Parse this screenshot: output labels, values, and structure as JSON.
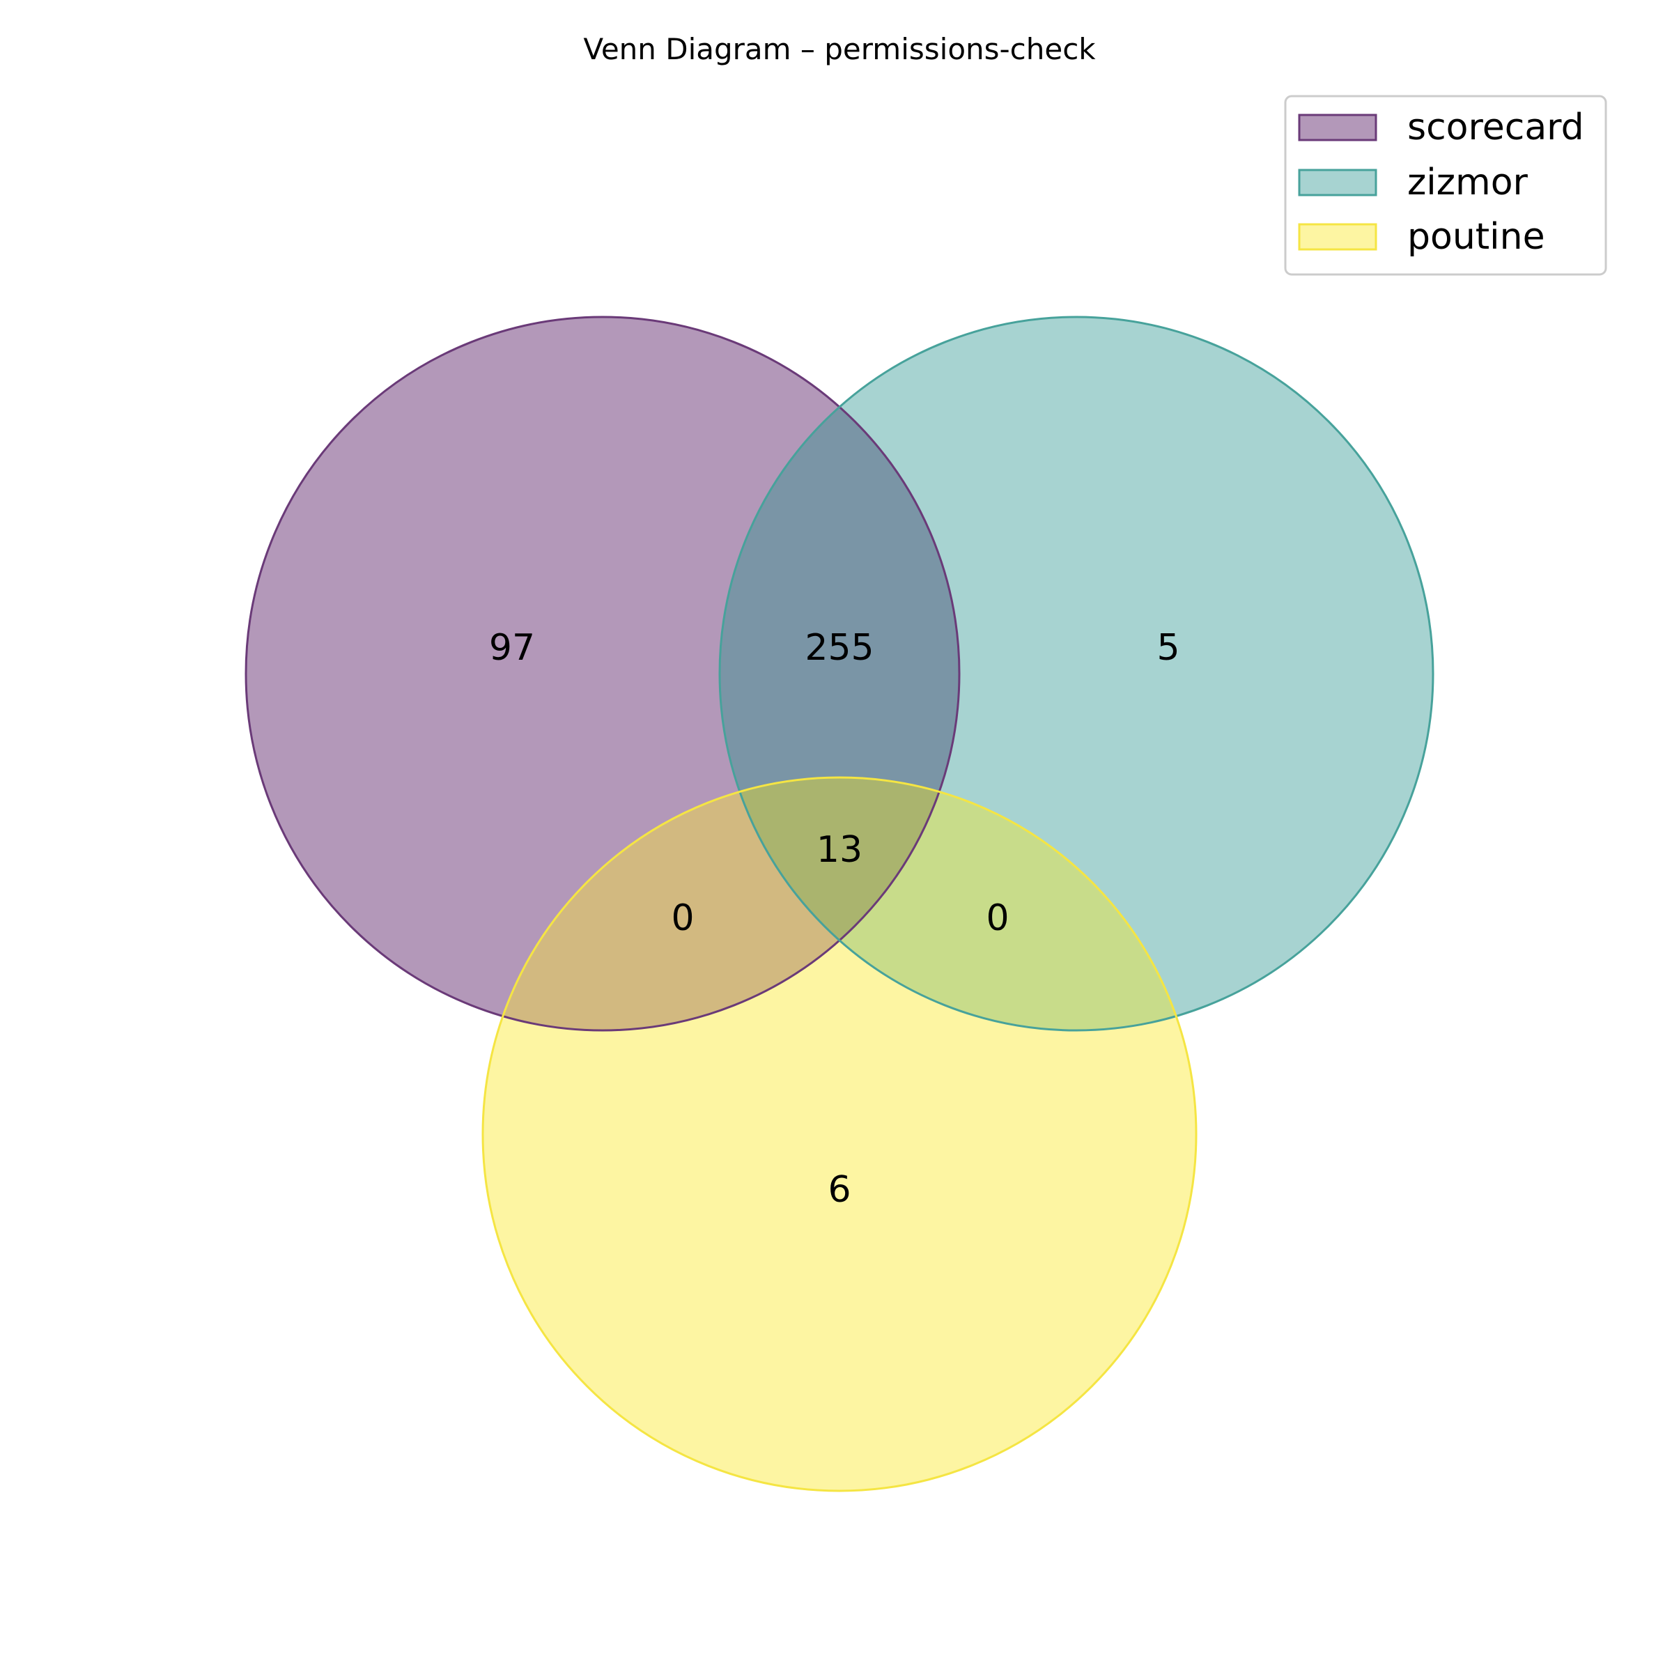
{
  "title": "Venn Diagram – permissions-check",
  "sets": [
    {
      "key": "scorecard",
      "name": "scorecard",
      "fill": "#b398b9",
      "stroke": "#6a3a78"
    },
    {
      "key": "zizmor",
      "name": "zizmor",
      "fill": "#a7d3d1",
      "stroke": "#47a29b"
    },
    {
      "key": "poutine",
      "name": "poutine",
      "fill": "#fdf5a2",
      "stroke": "#f5e543"
    }
  ],
  "regions": {
    "scorecard_only": "97",
    "scorecard_zizmor": "255",
    "zizmor_only": "5",
    "all_three": "13",
    "scorecard_poutine": "0",
    "zizmor_poutine": "0",
    "poutine_only": "6"
  },
  "region_colors": {
    "scorecard_zizmor": "#7a95a6",
    "scorecard_poutine": "#d2b980",
    "zizmor_poutine": "#c8dc8a",
    "all_three": "#aab46e"
  },
  "legend_position": "top-right"
}
